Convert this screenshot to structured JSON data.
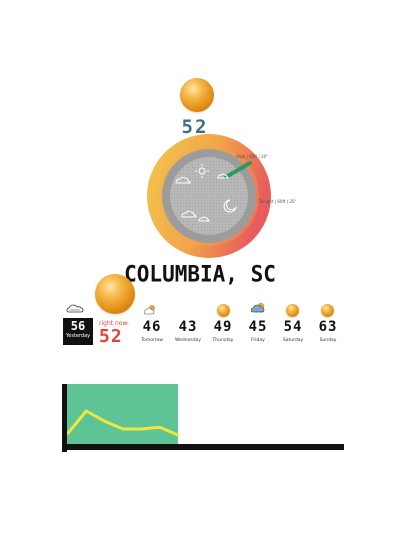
{
  "current": {
    "temperature": "52"
  },
  "dial": {
    "high_label": "High | 60ft | 16°",
    "tonight_label": "Tonight | 60ft | 35°",
    "colors": {
      "outer": "#f0c44a",
      "gradient_end": "#e85a5a",
      "inner_ring": "#999999",
      "core": "#b9b9b9",
      "indicator": "#2a9d5c"
    },
    "icons": [
      "sun-icon",
      "cloud-icon",
      "cloud-icon",
      "moon-icon",
      "cloud-icon",
      "cloud-icon"
    ]
  },
  "location": {
    "city": "COLUMBIA, SC"
  },
  "forecast": {
    "yesterday": {
      "temp": "56",
      "label": "Yesterday"
    },
    "now": {
      "label": "right now:",
      "temp": "52"
    },
    "days": [
      {
        "temp": "46",
        "label": "Tomorrow",
        "icon": "partly-sunny-icon"
      },
      {
        "temp": "43",
        "label": "Wednesday",
        "icon": "none"
      },
      {
        "temp": "49",
        "label": "Thursday",
        "icon": "sun-icon"
      },
      {
        "temp": "45",
        "label": "Friday",
        "icon": "storm-cloud-icon"
      },
      {
        "temp": "54",
        "label": "Saturday",
        "icon": "sun-icon"
      },
      {
        "temp": "63",
        "label": "Sunday",
        "icon": "sun-icon"
      }
    ],
    "yesterday_icon": "cloud-icon"
  },
  "chart_data": {
    "type": "line",
    "x": [
      0,
      1,
      2,
      3,
      4,
      5,
      6
    ],
    "values": [
      0.18,
      0.55,
      0.38,
      0.25,
      0.25,
      0.28,
      0.15
    ],
    "ylim": [
      0,
      1
    ],
    "xlabel": "",
    "ylabel": "",
    "colors": {
      "fill": "#5ec495",
      "line": "#f2e63c",
      "axis": "#111111"
    }
  }
}
